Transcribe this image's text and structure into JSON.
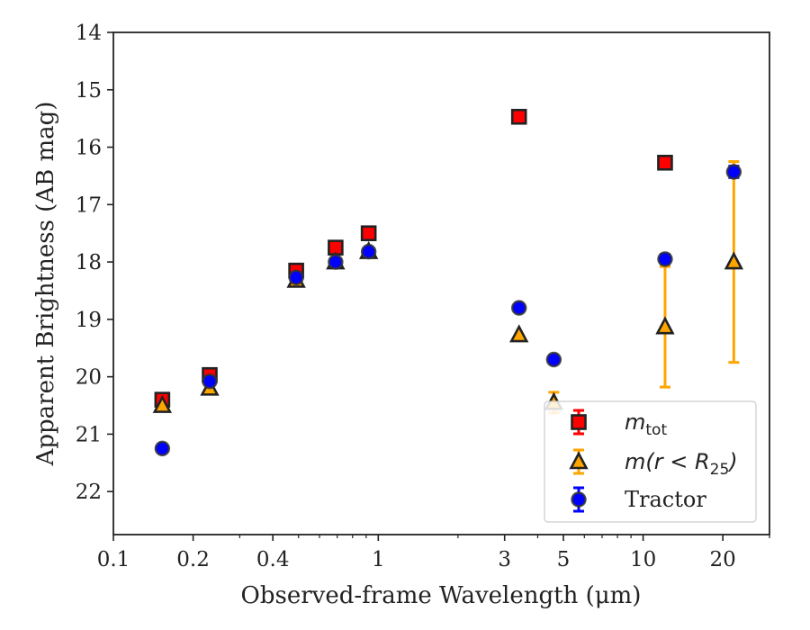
{
  "chart_data": {
    "type": "scatter",
    "title": "",
    "xlabel": "Observed-frame Wavelength (μm)",
    "ylabel": "Apparent Brightness (AB mag)",
    "xscale": "log",
    "xlim": [
      0.1,
      30
    ],
    "ylim": [
      22.75,
      14
    ],
    "y_inverted": true,
    "x_ticks": [
      {
        "value": 0.1,
        "label": "0.1"
      },
      {
        "value": 0.2,
        "label": "0.2"
      },
      {
        "value": 0.4,
        "label": "0.4"
      },
      {
        "value": 1,
        "label": "1"
      },
      {
        "value": 3,
        "label": "3"
      },
      {
        "value": 5,
        "label": "5"
      },
      {
        "value": 10,
        "label": "10"
      },
      {
        "value": 20,
        "label": "20"
      }
    ],
    "x_minor_ticks": [
      0.3,
      0.5,
      0.6,
      0.7,
      0.8,
      0.9,
      2,
      4,
      6,
      7,
      8,
      9,
      30
    ],
    "y_ticks": [
      14,
      15,
      16,
      17,
      18,
      19,
      20,
      21,
      22
    ],
    "grid": false,
    "legend_position": "bottom-right",
    "series": [
      {
        "key": "mtot",
        "legend_main": "m",
        "legend_sub": "tot",
        "marker": "square",
        "color": "#ff0000",
        "edge": "#222222",
        "error_color": "#ff0000",
        "points": [
          {
            "x": 0.153,
            "y": 20.4,
            "err": 0
          },
          {
            "x": 0.231,
            "y": 19.97,
            "err": 0
          },
          {
            "x": 0.49,
            "y": 18.15,
            "err": 0
          },
          {
            "x": 0.69,
            "y": 17.75,
            "err": 0
          },
          {
            "x": 0.92,
            "y": 17.5,
            "err": 0
          },
          {
            "x": 3.4,
            "y": 15.47,
            "err": 0
          },
          {
            "x": 12.1,
            "y": 16.27,
            "err": 0
          }
        ]
      },
      {
        "key": "mr25",
        "legend_main": "m(r < R",
        "legend_sub": "25",
        "legend_tail": ")",
        "marker": "triangle",
        "color": "#ffa500",
        "edge": "#222222",
        "error_color": "#ffa500",
        "points": [
          {
            "x": 0.153,
            "y": 20.5,
            "err": 0
          },
          {
            "x": 0.231,
            "y": 20.2,
            "err": 0
          },
          {
            "x": 0.49,
            "y": 18.32,
            "err": 0
          },
          {
            "x": 0.69,
            "y": 18.0,
            "err": 0
          },
          {
            "x": 0.92,
            "y": 17.82,
            "err": 0
          },
          {
            "x": 3.4,
            "y": 19.27,
            "err": 0
          },
          {
            "x": 4.6,
            "y": 20.45,
            "err": 0.18
          },
          {
            "x": 12.1,
            "y": 19.13,
            "err": 1.05
          },
          {
            "x": 22.0,
            "y": 18.0,
            "err": 1.75
          }
        ]
      },
      {
        "key": "tractor",
        "legend_main": "Tractor",
        "marker": "circle",
        "color": "#0000ff",
        "edge": "#333333",
        "error_color": "#0000ff",
        "points": [
          {
            "x": 0.153,
            "y": 21.25,
            "err": 0
          },
          {
            "x": 0.231,
            "y": 20.08,
            "err": 0
          },
          {
            "x": 0.49,
            "y": 18.27,
            "err": 0
          },
          {
            "x": 0.69,
            "y": 18.0,
            "err": 0
          },
          {
            "x": 0.92,
            "y": 17.82,
            "err": 0
          },
          {
            "x": 3.4,
            "y": 18.8,
            "err": 0
          },
          {
            "x": 4.6,
            "y": 19.7,
            "err": 0
          },
          {
            "x": 12.1,
            "y": 17.95,
            "err": 0.08
          },
          {
            "x": 22.0,
            "y": 16.43,
            "err": 0.1
          }
        ]
      }
    ]
  }
}
